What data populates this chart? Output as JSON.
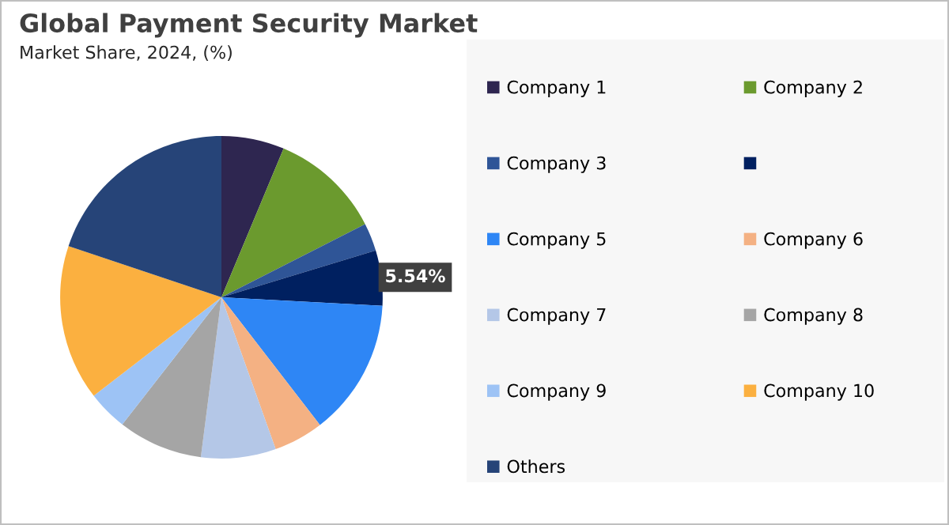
{
  "chart_data": {
    "type": "pie",
    "title": "Global Payment Security Market",
    "subtitle": "Market Share, 2024, (%)",
    "categories": [
      "Company 1",
      "Company 2",
      "Company 3",
      null,
      "Company 5",
      "Company 6",
      "Company 7",
      "Company 8",
      "Company 9",
      "Company 10",
      "Others"
    ],
    "values": [
      6.3,
      11.2,
      2.8,
      5.54,
      13.7,
      5.0,
      7.5,
      8.5,
      4.0,
      15.6,
      19.86
    ],
    "colors": [
      "#2e2650",
      "#6b9a2e",
      "#2f5597",
      "#002060",
      "#2e86f5",
      "#f4b183",
      "#b4c7e7",
      "#a5a5a5",
      "#9dc3f5",
      "#fbb040",
      "#264478"
    ],
    "value_labels": [
      null,
      null,
      null,
      "5.54%",
      null,
      null,
      null,
      null,
      null,
      null,
      null
    ],
    "legend": "right"
  }
}
